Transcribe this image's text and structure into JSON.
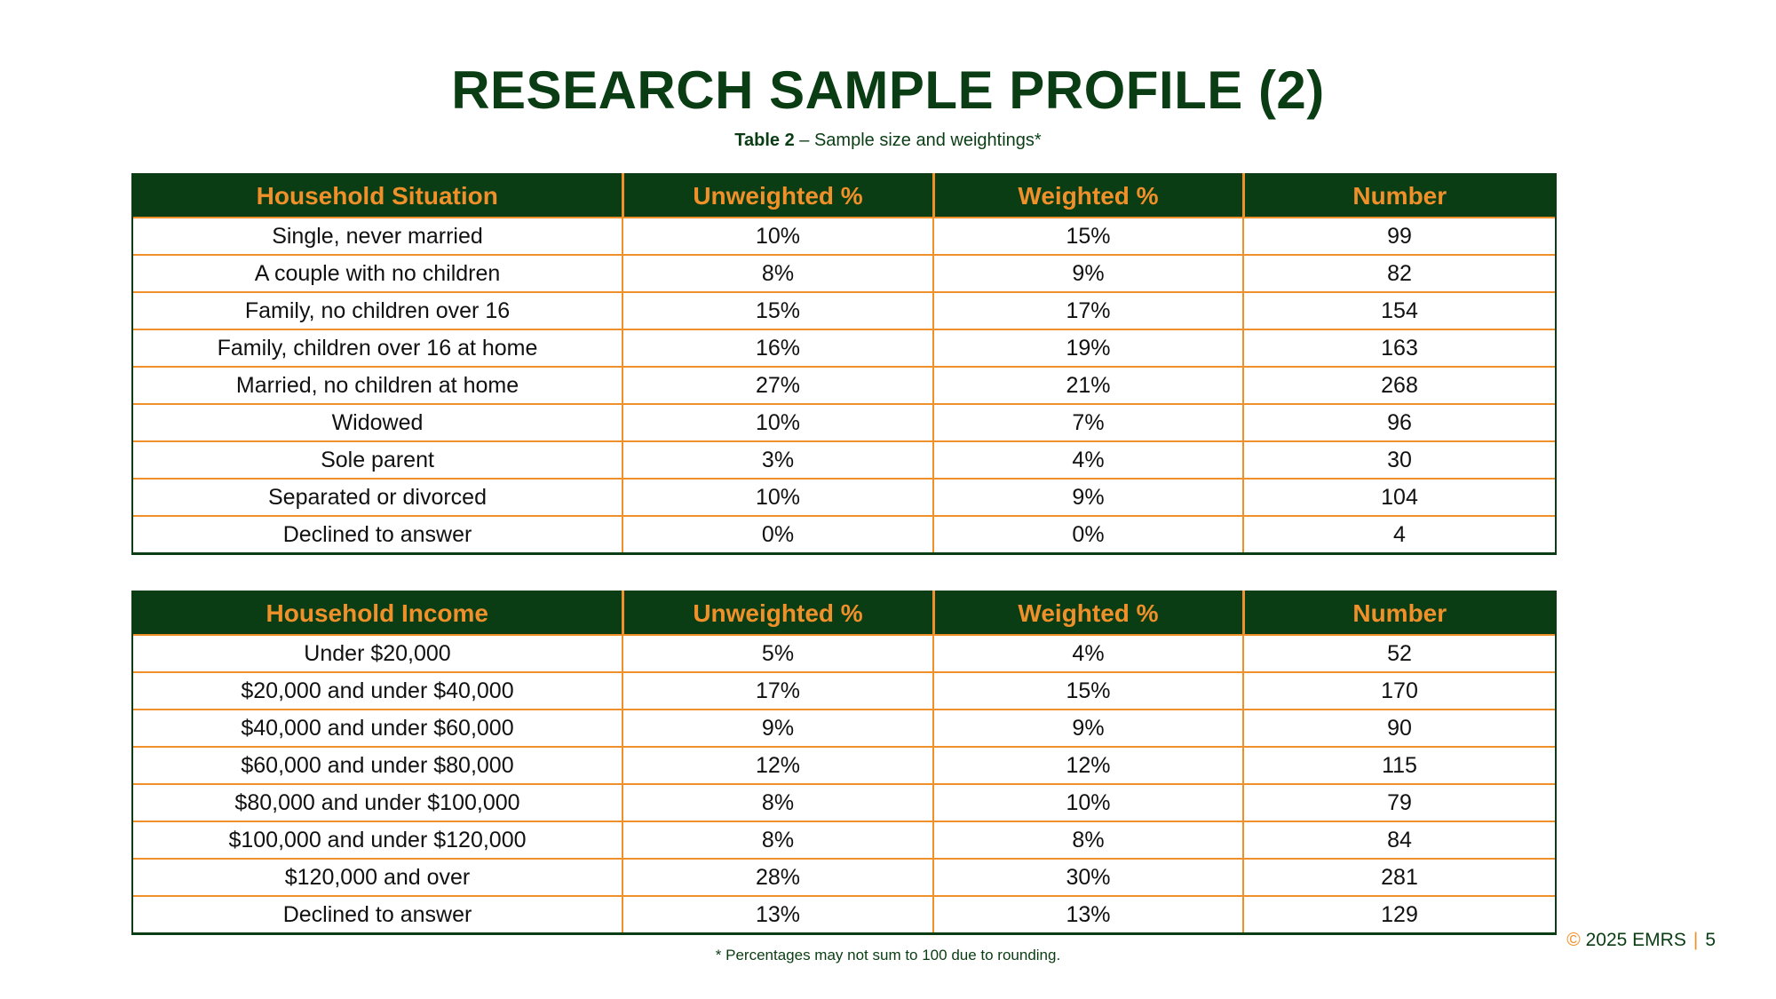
{
  "page": {
    "title": "RESEARCH SAMPLE PROFILE (2)",
    "subtitle_bold": "Table 2",
    "subtitle_rest": " – Sample size and weightings*",
    "footnote": "* Percentages may not sum to 100 due to rounding.",
    "footer": {
      "copyright_symbol": "©",
      "brand": " 2025 EMRS",
      "separator": "|",
      "page_number": "5"
    }
  },
  "tables": [
    {
      "headers": [
        "Household Situation",
        "Unweighted %",
        "Weighted %",
        "Number"
      ],
      "rows": [
        [
          "Single, never married",
          "10%",
          "15%",
          "99"
        ],
        [
          "A couple with no children",
          "8%",
          "9%",
          "82"
        ],
        [
          "Family, no children over 16",
          "15%",
          "17%",
          "154"
        ],
        [
          "Family, children over 16 at home",
          "16%",
          "19%",
          "163"
        ],
        [
          "Married, no children at home",
          "27%",
          "21%",
          "268"
        ],
        [
          "Widowed",
          "10%",
          "7%",
          "96"
        ],
        [
          "Sole parent",
          "3%",
          "4%",
          "30"
        ],
        [
          "Separated or divorced",
          "10%",
          "9%",
          "104"
        ],
        [
          "Declined to answer",
          "0%",
          "0%",
          "4"
        ]
      ]
    },
    {
      "headers": [
        "Household Income",
        "Unweighted %",
        "Weighted %",
        "Number"
      ],
      "rows": [
        [
          "Under $20,000",
          "5%",
          "4%",
          "52"
        ],
        [
          "$20,000 and under $40,000",
          "17%",
          "15%",
          "170"
        ],
        [
          "$40,000 and under $60,000",
          "9%",
          "9%",
          "90"
        ],
        [
          "$60,000 and under $80,000",
          "12%",
          "12%",
          "115"
        ],
        [
          "$80,000 and under $100,000",
          "8%",
          "10%",
          "79"
        ],
        [
          "$100,000 and under $120,000",
          "8%",
          "8%",
          "84"
        ],
        [
          "$120,000 and over",
          "28%",
          "30%",
          "281"
        ],
        [
          "Declined to answer",
          "13%",
          "13%",
          "129"
        ]
      ]
    }
  ],
  "colors": {
    "header_bg": "#0a3d14",
    "accent": "#f0902a",
    "title": "#0a3d14"
  }
}
